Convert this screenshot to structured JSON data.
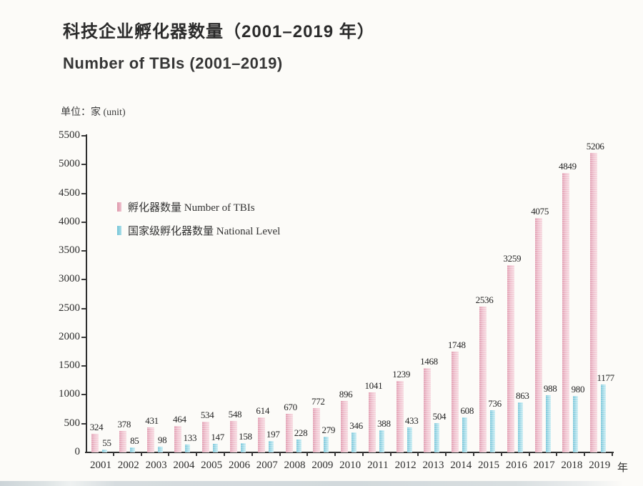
{
  "page": {
    "title_zh": "科技企业孵化器数量（2001–2019 年）",
    "title_en": "Number of TBIs (2001–2019)",
    "unit_label": "单位：家 (unit)",
    "x_axis_suffix": "年"
  },
  "legend": [
    {
      "label": "孵化器数量  Number of TBIs",
      "color": "#efc1ce"
    },
    {
      "label": "国家级孵化器数量  National Level",
      "color": "#aadee9"
    }
  ],
  "chart_data": {
    "type": "bar",
    "title": "科技企业孵化器数量（2001-2019年） Number of TBIs (2001-2019)",
    "ylabel": "家 (unit)",
    "xlabel": "年",
    "ylim": [
      0,
      5500
    ],
    "ytick_step": 500,
    "grid": false,
    "legend_position": "upper-left-inside",
    "categories": [
      "2001",
      "2002",
      "2003",
      "2004",
      "2005",
      "2006",
      "2007",
      "2008",
      "2009",
      "2010",
      "2011",
      "2012",
      "2013",
      "2014",
      "2015",
      "2016",
      "2017",
      "2018",
      "2019"
    ],
    "series": [
      {
        "name": "孵化器数量 Number of TBIs",
        "color": "#efc1ce",
        "values": [
          324,
          378,
          431,
          464,
          534,
          548,
          614,
          670,
          772,
          896,
          1041,
          1239,
          1468,
          1748,
          2536,
          3259,
          4075,
          4849,
          5206
        ]
      },
      {
        "name": "国家级孵化器数量 National Level",
        "color": "#aadee9",
        "values": [
          55,
          85,
          98,
          133,
          147,
          158,
          197,
          228,
          279,
          346,
          388,
          433,
          504,
          608,
          736,
          863,
          988,
          980,
          1177
        ]
      }
    ]
  }
}
